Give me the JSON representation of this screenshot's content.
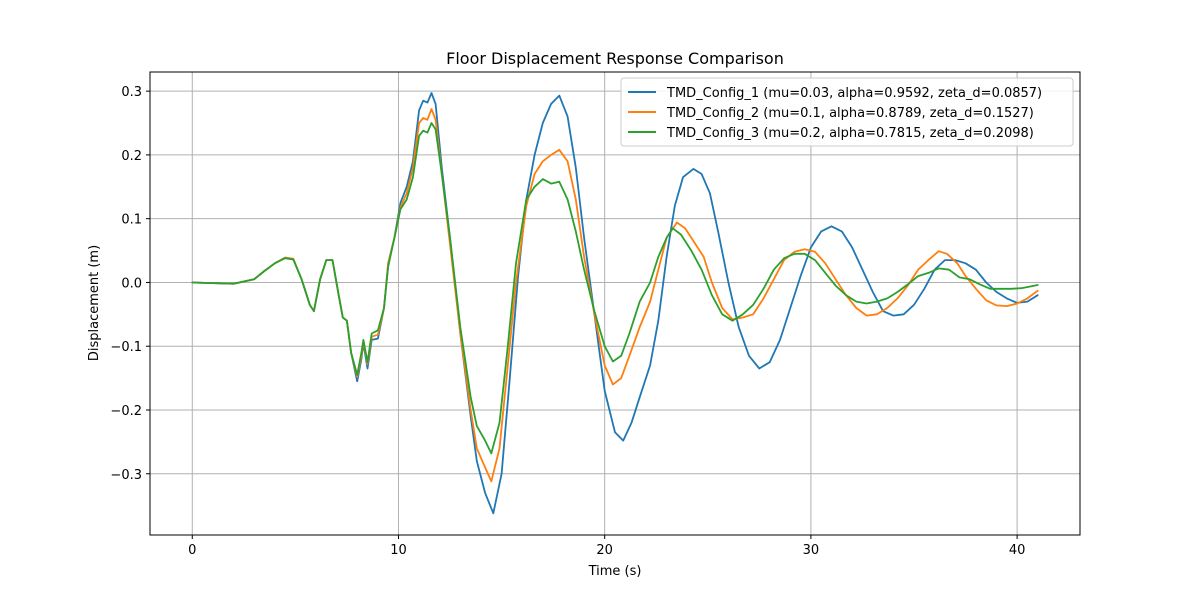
{
  "chart_data": {
    "type": "line",
    "title": "Floor Displacement Response Comparison",
    "xlabel": "Time (s)",
    "ylabel": "Displacement (m)",
    "xlim": [
      -2.05,
      43.05
    ],
    "ylim": [
      -0.396,
      0.33
    ],
    "xticks": [
      0,
      10,
      20,
      30,
      40
    ],
    "yticks": [
      -0.3,
      -0.2,
      -0.1,
      0.0,
      0.1,
      0.2,
      0.3
    ],
    "xtick_labels": [
      "0",
      "10",
      "20",
      "30",
      "40"
    ],
    "ytick_labels": [
      "−0.3",
      "−0.2",
      "−0.1",
      "0.0",
      "0.1",
      "0.2",
      "0.3"
    ],
    "grid": true,
    "legend_position": "top-right",
    "series": [
      {
        "name": "TMD_Config_1 (mu=0.03, alpha=0.9592, zeta_d=0.0857)",
        "color": "#1f77b4",
        "points": [
          [
            0,
            0
          ],
          [
            1,
            -0.001
          ],
          [
            2,
            -0.002
          ],
          [
            3,
            0.005
          ],
          [
            3.5,
            0.018
          ],
          [
            4,
            0.03
          ],
          [
            4.5,
            0.039
          ],
          [
            4.9,
            0.037
          ],
          [
            5.3,
            0.005
          ],
          [
            5.7,
            -0.035
          ],
          [
            5.9,
            -0.045
          ],
          [
            6.2,
            0.005
          ],
          [
            6.5,
            0.035
          ],
          [
            6.8,
            0.035
          ],
          [
            7.1,
            -0.02
          ],
          [
            7.3,
            -0.055
          ],
          [
            7.5,
            -0.06
          ],
          [
            7.7,
            -0.11
          ],
          [
            8.0,
            -0.155
          ],
          [
            8.2,
            -0.12
          ],
          [
            8.3,
            -0.095
          ],
          [
            8.5,
            -0.135
          ],
          [
            8.7,
            -0.09
          ],
          [
            9.0,
            -0.088
          ],
          [
            9.3,
            -0.04
          ],
          [
            9.5,
            0.03
          ],
          [
            9.8,
            0.07
          ],
          [
            10.1,
            0.125
          ],
          [
            10.4,
            0.15
          ],
          [
            10.7,
            0.19
          ],
          [
            11.0,
            0.27
          ],
          [
            11.2,
            0.285
          ],
          [
            11.4,
            0.282
          ],
          [
            11.6,
            0.297
          ],
          [
            11.8,
            0.28
          ],
          [
            12.1,
            0.18
          ],
          [
            12.5,
            0.07
          ],
          [
            13.0,
            -0.08
          ],
          [
            13.5,
            -0.21
          ],
          [
            13.8,
            -0.28
          ],
          [
            14.2,
            -0.33
          ],
          [
            14.6,
            -0.362
          ],
          [
            15.0,
            -0.3
          ],
          [
            15.4,
            -0.15
          ],
          [
            15.8,
            0.01
          ],
          [
            16.2,
            0.13
          ],
          [
            16.6,
            0.2
          ],
          [
            17.0,
            0.25
          ],
          [
            17.4,
            0.28
          ],
          [
            17.8,
            0.293
          ],
          [
            18.2,
            0.26
          ],
          [
            18.6,
            0.18
          ],
          [
            19.0,
            0.07
          ],
          [
            19.5,
            -0.05
          ],
          [
            20.0,
            -0.17
          ],
          [
            20.5,
            -0.235
          ],
          [
            20.9,
            -0.248
          ],
          [
            21.3,
            -0.22
          ],
          [
            21.7,
            -0.18
          ],
          [
            22.2,
            -0.13
          ],
          [
            22.6,
            -0.06
          ],
          [
            23.0,
            0.04
          ],
          [
            23.4,
            0.12
          ],
          [
            23.8,
            0.165
          ],
          [
            24.3,
            0.178
          ],
          [
            24.7,
            0.17
          ],
          [
            25.1,
            0.14
          ],
          [
            25.5,
            0.08
          ],
          [
            26.0,
            0.0
          ],
          [
            26.5,
            -0.07
          ],
          [
            27.0,
            -0.115
          ],
          [
            27.5,
            -0.135
          ],
          [
            28.0,
            -0.125
          ],
          [
            28.5,
            -0.09
          ],
          [
            29.0,
            -0.04
          ],
          [
            29.5,
            0.01
          ],
          [
            30.0,
            0.055
          ],
          [
            30.5,
            0.08
          ],
          [
            31.0,
            0.088
          ],
          [
            31.5,
            0.08
          ],
          [
            32.0,
            0.055
          ],
          [
            32.5,
            0.02
          ],
          [
            33.0,
            -0.015
          ],
          [
            33.5,
            -0.045
          ],
          [
            34.0,
            -0.052
          ],
          [
            34.5,
            -0.05
          ],
          [
            35.0,
            -0.035
          ],
          [
            35.5,
            -0.01
          ],
          [
            36.0,
            0.02
          ],
          [
            36.5,
            0.035
          ],
          [
            37.0,
            0.035
          ],
          [
            37.5,
            0.03
          ],
          [
            38.0,
            0.02
          ],
          [
            38.5,
            0.0
          ],
          [
            39.0,
            -0.015
          ],
          [
            39.5,
            -0.025
          ],
          [
            40.0,
            -0.032
          ],
          [
            40.5,
            -0.03
          ],
          [
            41,
            -0.02
          ]
        ]
      },
      {
        "name": "TMD_Config_2 (mu=0.1, alpha=0.8789, zeta_d=0.1527)",
        "color": "#ff7f0e",
        "points": [
          [
            0,
            0
          ],
          [
            1,
            -0.001
          ],
          [
            2,
            -0.002
          ],
          [
            3,
            0.005
          ],
          [
            3.5,
            0.018
          ],
          [
            4,
            0.03
          ],
          [
            4.5,
            0.039
          ],
          [
            4.9,
            0.037
          ],
          [
            5.3,
            0.005
          ],
          [
            5.7,
            -0.035
          ],
          [
            5.9,
            -0.045
          ],
          [
            6.2,
            0.005
          ],
          [
            6.5,
            0.035
          ],
          [
            6.8,
            0.035
          ],
          [
            7.1,
            -0.02
          ],
          [
            7.3,
            -0.055
          ],
          [
            7.5,
            -0.06
          ],
          [
            7.7,
            -0.11
          ],
          [
            8.0,
            -0.148
          ],
          [
            8.2,
            -0.115
          ],
          [
            8.3,
            -0.092
          ],
          [
            8.5,
            -0.128
          ],
          [
            8.7,
            -0.085
          ],
          [
            9.0,
            -0.082
          ],
          [
            9.3,
            -0.04
          ],
          [
            9.5,
            0.03
          ],
          [
            9.8,
            0.07
          ],
          [
            10.1,
            0.118
          ],
          [
            10.4,
            0.14
          ],
          [
            10.7,
            0.18
          ],
          [
            11.0,
            0.25
          ],
          [
            11.2,
            0.258
          ],
          [
            11.4,
            0.255
          ],
          [
            11.6,
            0.272
          ],
          [
            11.8,
            0.255
          ],
          [
            12.1,
            0.17
          ],
          [
            12.5,
            0.06
          ],
          [
            13.0,
            -0.08
          ],
          [
            13.5,
            -0.2
          ],
          [
            13.8,
            -0.26
          ],
          [
            14.2,
            -0.29
          ],
          [
            14.5,
            -0.312
          ],
          [
            14.9,
            -0.26
          ],
          [
            15.3,
            -0.13
          ],
          [
            15.7,
            0.0
          ],
          [
            16.2,
            0.12
          ],
          [
            16.6,
            0.17
          ],
          [
            17.0,
            0.19
          ],
          [
            17.4,
            0.2
          ],
          [
            17.8,
            0.208
          ],
          [
            18.2,
            0.19
          ],
          [
            18.6,
            0.13
          ],
          [
            19.0,
            0.04
          ],
          [
            19.5,
            -0.05
          ],
          [
            20.0,
            -0.13
          ],
          [
            20.4,
            -0.16
          ],
          [
            20.8,
            -0.15
          ],
          [
            21.2,
            -0.115
          ],
          [
            21.7,
            -0.07
          ],
          [
            22.2,
            -0.03
          ],
          [
            22.6,
            0.02
          ],
          [
            23.0,
            0.07
          ],
          [
            23.5,
            0.094
          ],
          [
            23.9,
            0.085
          ],
          [
            24.3,
            0.065
          ],
          [
            24.8,
            0.04
          ],
          [
            25.2,
            0.0
          ],
          [
            25.7,
            -0.04
          ],
          [
            26.2,
            -0.058
          ],
          [
            26.7,
            -0.055
          ],
          [
            27.2,
            -0.05
          ],
          [
            27.7,
            -0.025
          ],
          [
            28.2,
            0.005
          ],
          [
            28.7,
            0.035
          ],
          [
            29.2,
            0.048
          ],
          [
            29.7,
            0.052
          ],
          [
            30.2,
            0.048
          ],
          [
            30.7,
            0.03
          ],
          [
            31.2,
            0.005
          ],
          [
            31.7,
            -0.02
          ],
          [
            32.2,
            -0.04
          ],
          [
            32.7,
            -0.052
          ],
          [
            33.2,
            -0.05
          ],
          [
            33.7,
            -0.04
          ],
          [
            34.2,
            -0.025
          ],
          [
            34.7,
            -0.005
          ],
          [
            35.2,
            0.02
          ],
          [
            35.7,
            0.035
          ],
          [
            36.2,
            0.049
          ],
          [
            36.6,
            0.045
          ],
          [
            37.1,
            0.03
          ],
          [
            37.5,
            0.01
          ],
          [
            38.0,
            -0.01
          ],
          [
            38.5,
            -0.028
          ],
          [
            39.0,
            -0.036
          ],
          [
            39.5,
            -0.037
          ],
          [
            40.0,
            -0.033
          ],
          [
            40.5,
            -0.025
          ],
          [
            41,
            -0.013
          ]
        ]
      },
      {
        "name": "TMD_Config_3 (mu=0.2, alpha=0.7815, zeta_d=0.2098)",
        "color": "#2ca02c",
        "points": [
          [
            0,
            0
          ],
          [
            1,
            -0.001
          ],
          [
            2,
            -0.002
          ],
          [
            3,
            0.005
          ],
          [
            3.5,
            0.018
          ],
          [
            4,
            0.03
          ],
          [
            4.5,
            0.038
          ],
          [
            4.9,
            0.036
          ],
          [
            5.3,
            0.005
          ],
          [
            5.7,
            -0.035
          ],
          [
            5.9,
            -0.045
          ],
          [
            6.2,
            0.005
          ],
          [
            6.5,
            0.035
          ],
          [
            6.8,
            0.035
          ],
          [
            7.1,
            -0.02
          ],
          [
            7.3,
            -0.055
          ],
          [
            7.5,
            -0.06
          ],
          [
            7.7,
            -0.11
          ],
          [
            8.0,
            -0.145
          ],
          [
            8.2,
            -0.11
          ],
          [
            8.3,
            -0.09
          ],
          [
            8.5,
            -0.125
          ],
          [
            8.7,
            -0.08
          ],
          [
            9.0,
            -0.075
          ],
          [
            9.3,
            -0.04
          ],
          [
            9.5,
            0.025
          ],
          [
            9.8,
            0.07
          ],
          [
            10.1,
            0.115
          ],
          [
            10.4,
            0.13
          ],
          [
            10.7,
            0.165
          ],
          [
            11.0,
            0.23
          ],
          [
            11.2,
            0.238
          ],
          [
            11.4,
            0.235
          ],
          [
            11.6,
            0.25
          ],
          [
            11.8,
            0.24
          ],
          [
            12.1,
            0.17
          ],
          [
            12.5,
            0.07
          ],
          [
            13.0,
            -0.07
          ],
          [
            13.5,
            -0.18
          ],
          [
            13.8,
            -0.225
          ],
          [
            14.2,
            -0.248
          ],
          [
            14.5,
            -0.268
          ],
          [
            14.9,
            -0.22
          ],
          [
            15.3,
            -0.1
          ],
          [
            15.7,
            0.03
          ],
          [
            16.2,
            0.13
          ],
          [
            16.6,
            0.15
          ],
          [
            17.0,
            0.162
          ],
          [
            17.4,
            0.155
          ],
          [
            17.8,
            0.158
          ],
          [
            18.2,
            0.13
          ],
          [
            18.6,
            0.08
          ],
          [
            19.0,
            0.02
          ],
          [
            19.5,
            -0.045
          ],
          [
            20.0,
            -0.1
          ],
          [
            20.4,
            -0.124
          ],
          [
            20.8,
            -0.115
          ],
          [
            21.2,
            -0.08
          ],
          [
            21.7,
            -0.03
          ],
          [
            22.2,
            0.0
          ],
          [
            22.6,
            0.04
          ],
          [
            23.0,
            0.07
          ],
          [
            23.3,
            0.085
          ],
          [
            23.7,
            0.075
          ],
          [
            24.2,
            0.05
          ],
          [
            24.7,
            0.02
          ],
          [
            25.2,
            -0.02
          ],
          [
            25.7,
            -0.05
          ],
          [
            26.2,
            -0.06
          ],
          [
            26.7,
            -0.05
          ],
          [
            27.2,
            -0.035
          ],
          [
            27.7,
            -0.01
          ],
          [
            28.2,
            0.02
          ],
          [
            28.7,
            0.038
          ],
          [
            29.2,
            0.045
          ],
          [
            29.7,
            0.045
          ],
          [
            30.2,
            0.035
          ],
          [
            30.7,
            0.015
          ],
          [
            31.2,
            -0.005
          ],
          [
            31.7,
            -0.02
          ],
          [
            32.2,
            -0.03
          ],
          [
            32.7,
            -0.033
          ],
          [
            33.2,
            -0.03
          ],
          [
            33.7,
            -0.025
          ],
          [
            34.2,
            -0.015
          ],
          [
            34.7,
            -0.003
          ],
          [
            35.2,
            0.01
          ],
          [
            35.7,
            0.015
          ],
          [
            36.2,
            0.022
          ],
          [
            36.7,
            0.02
          ],
          [
            37.2,
            0.008
          ],
          [
            37.7,
            0.005
          ],
          [
            38.2,
            -0.003
          ],
          [
            38.7,
            -0.01
          ],
          [
            39.2,
            -0.01
          ],
          [
            39.7,
            -0.01
          ],
          [
            40.2,
            -0.009
          ],
          [
            40.7,
            -0.006
          ],
          [
            41,
            -0.004
          ]
        ]
      }
    ]
  }
}
